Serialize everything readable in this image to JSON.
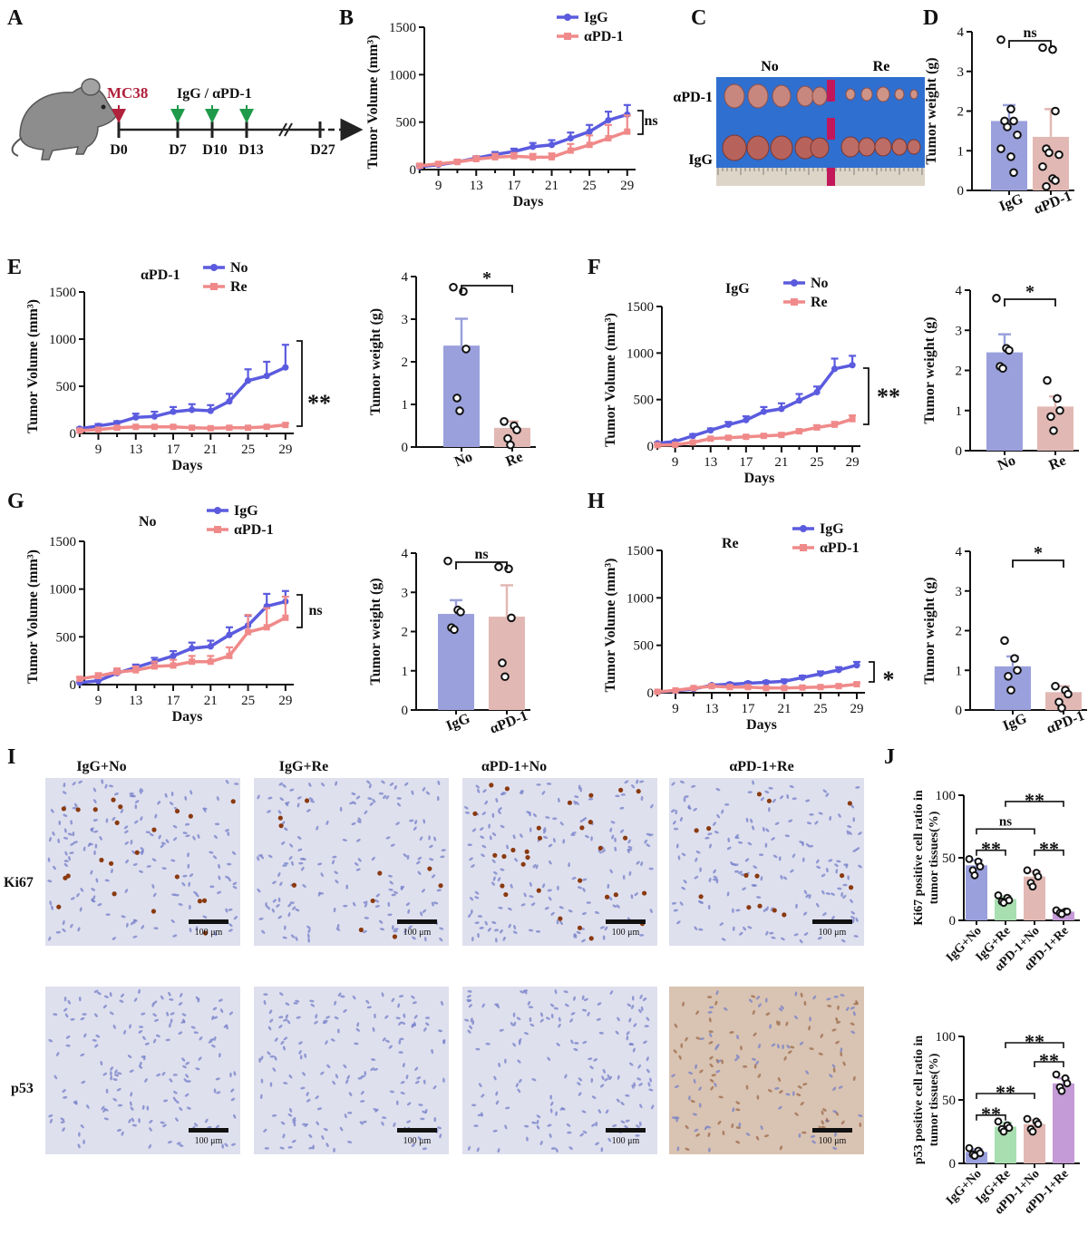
{
  "colors": {
    "blue": "#5b5bdf",
    "red": "#f08a8a",
    "bar_blue": "#9aa0dc",
    "bar_pink": "#e2b8b4",
    "bar_green": "#a9deb1",
    "bar_purple": "#c49bd6",
    "mc38_red": "#b0213c",
    "arrow_green": "#1e9a4a",
    "tissue_blue": "#6f79c9",
    "tissue_brown": "#8a4b1e"
  },
  "panel_letters": {
    "A": "A",
    "B": "B",
    "C": "C",
    "D": "D",
    "E": "E",
    "F": "F",
    "G": "G",
    "H": "H",
    "I": "I",
    "J": "J"
  },
  "panelA": {
    "mc38": "MC38",
    "treatment": "IgG / αPD-1",
    "days": [
      "D0",
      "D7",
      "D10",
      "D13",
      "D27"
    ]
  },
  "panelC": {
    "col_no": "No",
    "col_re": "Re",
    "row_apd1": "αPD-1",
    "row_igg": "IgG"
  },
  "panelI": {
    "col_labels": [
      "IgG+No",
      "IgG+Re",
      "αPD-1+No",
      "αPD-1+Re"
    ],
    "row_labels": [
      "Ki67",
      "p53"
    ],
    "scale_bar": "100 μm"
  },
  "chart_data": [
    {
      "id": "B",
      "type": "line",
      "title": "",
      "xlabel": "Days",
      "ylabel": "Tumor Volume (mm³)",
      "x": [
        7,
        9,
        11,
        13,
        15,
        17,
        19,
        21,
        23,
        25,
        27,
        29
      ],
      "xticks": [
        9,
        13,
        17,
        21,
        25,
        29
      ],
      "ylim": [
        0,
        1500
      ],
      "yticks": [
        0,
        500,
        1000,
        1500
      ],
      "series": [
        {
          "name": "IgG",
          "color": "blue",
          "values": [
            30,
            50,
            80,
            120,
            160,
            190,
            240,
            260,
            330,
            400,
            520,
            580
          ],
          "errors": [
            10,
            10,
            15,
            20,
            25,
            30,
            40,
            50,
            60,
            70,
            90,
            100
          ]
        },
        {
          "name": "αPD-1",
          "color": "red",
          "values": [
            40,
            60,
            80,
            110,
            130,
            140,
            130,
            130,
            200,
            260,
            330,
            400
          ],
          "errors": [
            20,
            20,
            25,
            30,
            35,
            35,
            35,
            40,
            70,
            100,
            140,
            170
          ]
        }
      ],
      "annotation": "ns"
    },
    {
      "id": "D",
      "type": "bar",
      "title": "",
      "xlabel": "",
      "ylabel": "Tumor weight (g)",
      "categories": [
        "IgG",
        "αPD-1"
      ],
      "values": [
        1.75,
        1.35
      ],
      "errors": [
        0.4,
        0.7
      ],
      "colors": [
        "bar_blue",
        "bar_pink"
      ],
      "points": [
        [
          3.8,
          2.05,
          1.75,
          1.75,
          1.6,
          1.4,
          1.05,
          0.85,
          0.45
        ],
        [
          3.6,
          3.55,
          2.0,
          1.05,
          0.95,
          0.9,
          0.6,
          0.3,
          0.25,
          0.1
        ]
      ],
      "ylim": [
        0,
        4
      ],
      "yticks": [
        0,
        1,
        2,
        3,
        4
      ],
      "annotation": "ns"
    },
    {
      "id": "E_line",
      "type": "line",
      "title": "αPD-1",
      "xlabel": "Days",
      "ylabel": "Tumor Volume (mm³)",
      "x": [
        7,
        9,
        11,
        13,
        15,
        17,
        19,
        21,
        23,
        25,
        27,
        29
      ],
      "xticks": [
        9,
        13,
        17,
        21,
        25,
        29
      ],
      "ylim": [
        0,
        1500
      ],
      "yticks": [
        0,
        500,
        1000,
        1500
      ],
      "series": [
        {
          "name": "No",
          "color": "blue",
          "values": [
            50,
            80,
            110,
            170,
            180,
            230,
            250,
            240,
            340,
            560,
            610,
            700
          ],
          "errors": [
            10,
            20,
            20,
            40,
            50,
            50,
            60,
            60,
            80,
            120,
            150,
            240
          ]
        },
        {
          "name": "Re",
          "color": "red",
          "values": [
            30,
            40,
            60,
            70,
            70,
            70,
            60,
            55,
            60,
            60,
            70,
            90
          ],
          "errors": [
            10,
            10,
            10,
            10,
            10,
            10,
            10,
            10,
            10,
            10,
            10,
            15
          ]
        }
      ],
      "annotation": "**"
    },
    {
      "id": "E_bar",
      "type": "bar",
      "title": "",
      "xlabel": "",
      "ylabel": "Tumor weight (g)",
      "categories": [
        "No",
        "Re"
      ],
      "values": [
        2.38,
        0.45
      ],
      "errors": [
        0.63,
        0.15
      ],
      "colors": [
        "bar_blue",
        "bar_pink"
      ],
      "points": [
        [
          3.75,
          3.65,
          2.3,
          1.15,
          0.85
        ],
        [
          0.6,
          0.5,
          0.4,
          0.2,
          0.05
        ]
      ],
      "ylim": [
        0,
        4
      ],
      "yticks": [
        0,
        1,
        2,
        3,
        4
      ],
      "annotation": "*"
    },
    {
      "id": "F_line",
      "type": "line",
      "title": "IgG",
      "xlabel": "Days",
      "ylabel": "Tumor Volume (mm³)",
      "x": [
        7,
        9,
        11,
        13,
        15,
        17,
        19,
        21,
        23,
        25,
        27,
        29
      ],
      "xticks": [
        9,
        13,
        17,
        21,
        25,
        29
      ],
      "ylim": [
        0,
        1500
      ],
      "yticks": [
        0,
        500,
        1000,
        1500
      ],
      "series": [
        {
          "name": "No",
          "color": "blue",
          "values": [
            30,
            50,
            110,
            170,
            230,
            280,
            370,
            400,
            490,
            580,
            830,
            870
          ],
          "errors": [
            10,
            10,
            20,
            20,
            30,
            40,
            50,
            60,
            70,
            60,
            110,
            100
          ]
        },
        {
          "name": "Re",
          "color": "red",
          "values": [
            10,
            15,
            40,
            80,
            90,
            100,
            110,
            120,
            160,
            200,
            230,
            290
          ],
          "errors": [
            5,
            5,
            10,
            10,
            15,
            15,
            15,
            20,
            20,
            25,
            30,
            40
          ]
        }
      ],
      "annotation": "**"
    },
    {
      "id": "F_bar",
      "type": "bar",
      "title": "",
      "xlabel": "",
      "ylabel": "Tumor weight (g)",
      "categories": [
        "No",
        "Re"
      ],
      "values": [
        2.45,
        1.1
      ],
      "errors": [
        0.45,
        0.25
      ],
      "colors": [
        "bar_blue",
        "bar_pink"
      ],
      "points": [
        [
          3.8,
          2.55,
          2.5,
          2.1,
          2.05
        ],
        [
          1.75,
          1.3,
          1.0,
          0.85,
          0.5
        ]
      ],
      "ylim": [
        0,
        4
      ],
      "yticks": [
        0,
        1,
        2,
        3,
        4
      ],
      "annotation": "*"
    },
    {
      "id": "G_line",
      "type": "line",
      "title": "No",
      "xlabel": "Days",
      "ylabel": "Tumor Volume (mm³)",
      "x": [
        7,
        9,
        11,
        13,
        15,
        17,
        19,
        21,
        23,
        25,
        27,
        29
      ],
      "xticks": [
        9,
        13,
        17,
        21,
        25,
        29
      ],
      "ylim": [
        0,
        1500
      ],
      "yticks": [
        0,
        500,
        1000,
        1500
      ],
      "series": [
        {
          "name": "IgG",
          "color": "blue",
          "values": [
            20,
            40,
            120,
            180,
            240,
            300,
            380,
            400,
            520,
            620,
            820,
            870
          ],
          "errors": [
            10,
            20,
            30,
            30,
            40,
            50,
            60,
            60,
            80,
            100,
            130,
            110
          ]
        },
        {
          "name": "αPD-1",
          "color": "red",
          "values": [
            60,
            90,
            130,
            150,
            190,
            200,
            240,
            240,
            300,
            550,
            600,
            700
          ],
          "errors": [
            20,
            30,
            40,
            40,
            50,
            60,
            60,
            60,
            90,
            180,
            200,
            220
          ]
        }
      ],
      "annotation": "ns"
    },
    {
      "id": "G_bar",
      "type": "bar",
      "title": "",
      "xlabel": "",
      "ylabel": "Tumor weight (g)",
      "categories": [
        "IgG",
        "αPD-1"
      ],
      "values": [
        2.45,
        2.38
      ],
      "errors": [
        0.35,
        0.8
      ],
      "colors": [
        "bar_blue",
        "bar_pink"
      ],
      "points": [
        [
          3.8,
          2.55,
          2.5,
          2.1,
          2.05
        ],
        [
          3.65,
          3.6,
          2.35,
          1.2,
          0.85
        ]
      ],
      "ylim": [
        0,
        4
      ],
      "yticks": [
        0,
        1,
        2,
        3,
        4
      ],
      "annotation": "ns"
    },
    {
      "id": "H_line",
      "type": "line",
      "title": "Re",
      "xlabel": "Days",
      "ylabel": "Tumor Volume (mm³)",
      "x": [
        7,
        9,
        11,
        13,
        15,
        17,
        19,
        21,
        23,
        25,
        27,
        29
      ],
      "xticks": [
        9,
        13,
        17,
        21,
        25,
        29
      ],
      "ylim": [
        0,
        1500
      ],
      "yticks": [
        0,
        500,
        1000,
        1500
      ],
      "series": [
        {
          "name": "IgG",
          "color": "blue",
          "values": [
            10,
            20,
            40,
            80,
            90,
            100,
            110,
            120,
            160,
            200,
            240,
            290
          ],
          "errors": [
            5,
            5,
            10,
            10,
            15,
            15,
            15,
            20,
            20,
            25,
            30,
            35
          ]
        },
        {
          "name": "αPD-1",
          "color": "red",
          "values": [
            10,
            25,
            50,
            70,
            60,
            60,
            50,
            50,
            55,
            60,
            70,
            90
          ],
          "errors": [
            5,
            5,
            10,
            10,
            10,
            10,
            10,
            10,
            10,
            10,
            10,
            15
          ]
        }
      ],
      "annotation": "*"
    },
    {
      "id": "H_bar",
      "type": "bar",
      "title": "",
      "xlabel": "",
      "ylabel": "Tumor weight (g)",
      "categories": [
        "IgG",
        "αPD-1"
      ],
      "values": [
        1.1,
        0.45
      ],
      "errors": [
        0.25,
        0.15
      ],
      "colors": [
        "bar_blue",
        "bar_pink"
      ],
      "points": [
        [
          1.75,
          1.3,
          1.0,
          0.85,
          0.5
        ],
        [
          0.6,
          0.5,
          0.4,
          0.2,
          0.05
        ]
      ],
      "ylim": [
        0,
        4
      ],
      "yticks": [
        0,
        1,
        2,
        3,
        4
      ],
      "annotation": "*"
    },
    {
      "id": "J_ki67",
      "type": "bar",
      "title": "",
      "xlabel": "",
      "ylabel": "Ki67 positive cell ratio in tumor tissues(%)",
      "categories": [
        "IgG+No",
        "IgG+Re",
        "αPD-1+No",
        "αPD-1+Re"
      ],
      "values": [
        44,
        17,
        35,
        7
      ],
      "errors": [
        4,
        2,
        4,
        1
      ],
      "colors": [
        "bar_blue",
        "bar_green",
        "bar_pink",
        "bar_purple"
      ],
      "points": [
        [
          49,
          47,
          43,
          40,
          36
        ],
        [
          20,
          18,
          16,
          15,
          14
        ],
        [
          40,
          38,
          35,
          30,
          27
        ],
        [
          8,
          7,
          7,
          6,
          5
        ]
      ],
      "ylim": [
        0,
        100
      ],
      "yticks": [
        0,
        50,
        100
      ],
      "brackets": [
        {
          "from": 0,
          "to": 1,
          "label": "**"
        },
        {
          "from": 0,
          "to": 2,
          "label": "ns"
        },
        {
          "from": 2,
          "to": 3,
          "label": "**"
        },
        {
          "from": 1,
          "to": 3,
          "label": "**"
        }
      ]
    },
    {
      "id": "J_p53",
      "type": "bar",
      "title": "",
      "xlabel": "",
      "ylabel": "p53 positive cell ratio in tumor tissues(%)",
      "categories": [
        "IgG+No",
        "IgG+Re",
        "αPD-1+No",
        "αPD-1+Re"
      ],
      "values": [
        9,
        29,
        31,
        63
      ],
      "errors": [
        2,
        3,
        3,
        4
      ],
      "colors": [
        "bar_blue",
        "bar_green",
        "bar_pink",
        "bar_purple"
      ],
      "points": [
        [
          12,
          10,
          8,
          7,
          6
        ],
        [
          33,
          30,
          28,
          27,
          25
        ],
        [
          35,
          33,
          31,
          27,
          25
        ],
        [
          70,
          67,
          63,
          60,
          57
        ]
      ],
      "ylim": [
        0,
        100
      ],
      "yticks": [
        0,
        50,
        100
      ],
      "brackets": [
        {
          "from": 0,
          "to": 1,
          "label": "**"
        },
        {
          "from": 0,
          "to": 2,
          "label": "**"
        },
        {
          "from": 2,
          "to": 3,
          "label": "**"
        },
        {
          "from": 1,
          "to": 3,
          "label": "**"
        }
      ]
    }
  ]
}
